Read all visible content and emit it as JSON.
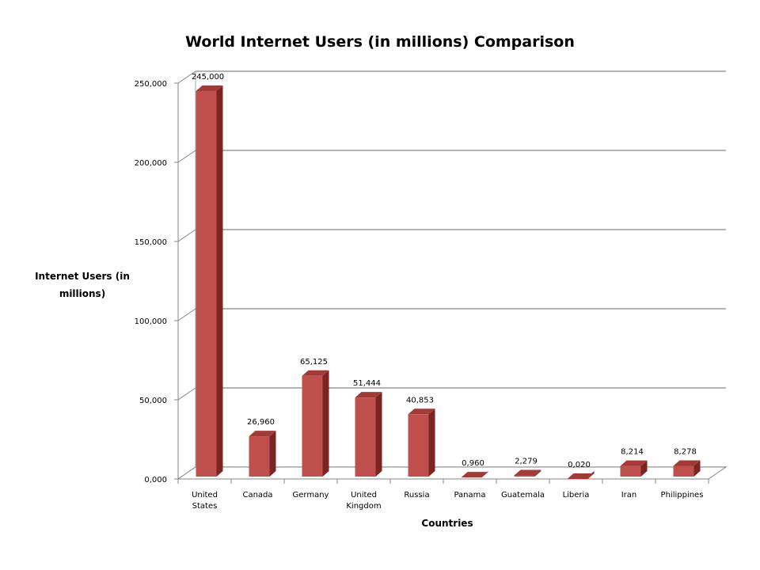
{
  "chart_data": {
    "type": "bar",
    "title": "World Internet Users (in millions) Comparison",
    "xlabel": "Countries",
    "ylabel": "Internet Users (in millions)",
    "categories": [
      "United States",
      "Canada",
      "Germany",
      "United Kingdom",
      "Russia",
      "Panama",
      "Guatemala",
      "Liberia",
      "Iran",
      "Philippines"
    ],
    "category_labels": [
      [
        "United",
        "States"
      ],
      [
        "Canada"
      ],
      [
        "Germany"
      ],
      [
        "United",
        "Kingdom"
      ],
      [
        "Russia"
      ],
      [
        "Panama"
      ],
      [
        "Guatemala"
      ],
      [
        "Liberia"
      ],
      [
        "Iran"
      ],
      [
        "Philippines"
      ]
    ],
    "values": [
      245.0,
      26.96,
      65.125,
      51.444,
      40.853,
      0.96,
      2.279,
      0.02,
      8.214,
      8.278
    ],
    "value_labels": [
      "245,000",
      "26,960",
      "65,125",
      "51,444",
      "40,853",
      "0,960",
      "2,279",
      "0,020",
      "8,214",
      "8,278"
    ],
    "ylim": [
      0,
      250
    ],
    "yticks": [
      0,
      50,
      100,
      150,
      200,
      250
    ],
    "ytick_labels": [
      "0,000",
      "50,000",
      "100,000",
      "150,000",
      "200,000",
      "250,000"
    ],
    "grid": true,
    "legend": "none",
    "colors": {
      "bar_front": "#c0504d",
      "bar_side": "#7b2523",
      "bar_top": "#a23a37",
      "grid": "#868686",
      "wall": "#a6a6a6"
    }
  }
}
